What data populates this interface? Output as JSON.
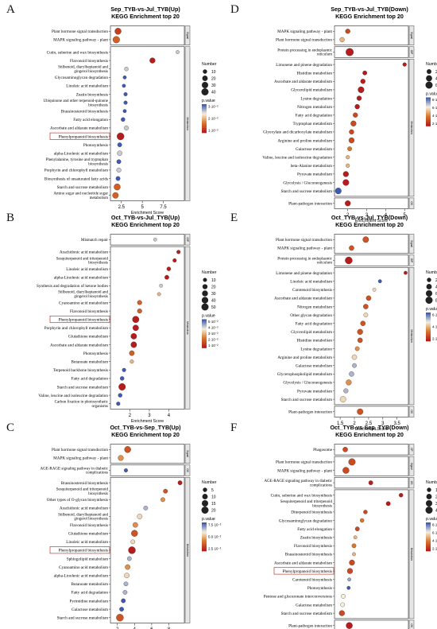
{
  "chart_data": [
    {
      "type": "scatter",
      "panel": "A",
      "title": "Sep_TYB-vs-Jul_TYB(Up)",
      "subtitle": "KEGG Enrichment top 20",
      "xlabel": "Enrichment Score",
      "xlim": [
        1.2,
        10
      ],
      "xticks": [
        2.5,
        5.0,
        7.5
      ],
      "groups": [
        {
          "label": "Signal",
          "n": 2
        },
        {
          "label": "Metabolism",
          "n": 18
        }
      ],
      "terms": [
        "Plant hormone signal transduction",
        "MAPK signaling pathway - plant",
        "Cutin, suberine and wax biosynthesis",
        "Flavonoid biosynthesis",
        "Stilbenoid, diarylheptanoid and gingerol biosynthesis",
        "Glycosaminoglycan degradation",
        "Linoleic acid metabolism",
        "Zeatin biosynthesis",
        "Ubiquinone and other terpenoid-quinone biosynthesis",
        "Brassinosteroid biosynthesis",
        "Fatty acid elongation",
        "Ascorbate and aldarate metabolism",
        "Phenylpropanoid biosynthesis",
        "Photosynthesis",
        "alpha-Linolenic acid metabolism",
        "Phenylalanine, tyrosine and tryptophan biosynthesis",
        "Porphyrin and chlorophyll metabolism",
        "Biosynthesis of unsaturated fatty acids",
        "Starch and sucrose metabolism",
        "Amino sugar and nucleotide sugar metabolism"
      ],
      "x": [
        2.1,
        1.9,
        9.2,
        6.2,
        3.1,
        2.9,
        2.8,
        3.0,
        3.0,
        2.9,
        2.7,
        3.1,
        2.4,
        2.3,
        2.3,
        2.2,
        2.2,
        2.1,
        2.0,
        1.8
      ],
      "size": [
        30,
        35,
        5,
        20,
        8,
        5,
        5,
        6,
        6,
        5,
        8,
        12,
        40,
        10,
        15,
        10,
        12,
        10,
        30,
        25
      ],
      "pvalue_log": [
        -5.5,
        -5,
        -3,
        -6,
        -3,
        -2,
        -2,
        -2,
        -2,
        -2,
        -2,
        -3,
        -6,
        -2,
        -3,
        -2,
        -3,
        -2,
        -5,
        -5
      ],
      "highlight": "Phenylpropanoid biosynthesis",
      "size_legend": {
        "title": "Number",
        "values": [
          10,
          20,
          30,
          40
        ]
      },
      "color_legend": {
        "title": "p.value",
        "labels": [
          "3·10⁻²",
          "2·10⁻²",
          "1·10⁻²"
        ],
        "colors": [
          "#3b5bb5",
          "#f5f0dc",
          "#d9772a",
          "#b71c1c"
        ]
      }
    },
    {
      "type": "scatter",
      "panel": "B",
      "title": "Oct_TYB-vs-Jul_TYB(Up)",
      "subtitle": "KEGG Enrichment top 20",
      "xlabel": "Enrichment Score",
      "xlim": [
        1.0,
        4.8
      ],
      "xticks": [
        2,
        3,
        4
      ],
      "groups": [
        {
          "label": "GIP",
          "n": 1
        },
        {
          "label": "Metabolism",
          "n": 19
        }
      ],
      "terms": [
        "Mismatch repair",
        "Arachidonic acid metabolism",
        "Sesquiterpenoid and triterpenoid biosynthesis",
        "Linoleic acid metabolism",
        "alpha-Linolenic acid metabolism",
        "Synthesis and degradation of ketone bodies",
        "Stilbenoid, diarylheptanoid and gingerol biosynthesis",
        "Cyanoamino acid metabolism",
        "Flavonoid biosynthesis",
        "Phenylpropanoid biosynthesis",
        "Porphyrin and chlorophyll metabolism",
        "Glutathione metabolism",
        "Ascorbate and aldarate metabolism",
        "Photosynthesis",
        "Butanoate metabolism",
        "Terpenoid backbone biosynthesis",
        "Fatty acid degradation",
        "Starch and sucrose metabolism",
        "Valine, leucine and isoleucine degradation",
        "Carbon fixation in photosynthetic organisms"
      ],
      "x": [
        3.3,
        4.5,
        4.3,
        4.0,
        3.9,
        3.6,
        3.5,
        2.5,
        2.5,
        2.3,
        2.3,
        2.2,
        2.2,
        2.1,
        2.1,
        1.7,
        1.6,
        1.6,
        1.5,
        1.4
      ],
      "size": [
        5,
        8,
        8,
        10,
        12,
        5,
        6,
        15,
        15,
        40,
        30,
        30,
        30,
        20,
        8,
        8,
        10,
        45,
        10,
        8
      ],
      "pvalue_log": [
        -2,
        -5,
        -5,
        -5,
        -5,
        -2,
        -3,
        -4,
        -4,
        -5,
        -5,
        -5,
        -5,
        -4,
        -3,
        -1,
        -1,
        -5,
        -1,
        -1
      ],
      "highlight": "Phenylpropanoid biosynthesis",
      "size_legend": {
        "title": "Number",
        "values": [
          10,
          20,
          30,
          40,
          50
        ]
      },
      "color_legend": {
        "title": "p.value",
        "labels": [
          "5·10⁻²",
          "4·10⁻²",
          "3·10⁻²",
          "2·10⁻²",
          "1·10⁻²"
        ],
        "colors": [
          "#3b5bb5",
          "#f5f0dc",
          "#d9772a",
          "#b71c1c"
        ]
      }
    },
    {
      "type": "scatter",
      "panel": "C",
      "title": "Oct_TYB-vs-Sep_TYB(Up)",
      "subtitle": "KEGG Enrichment top 20",
      "xlabel": "Enrichment Score",
      "xlim": [
        1.2,
        9.8
      ],
      "xticks": [
        2,
        4,
        6,
        8
      ],
      "groups": [
        {
          "label": "Signal",
          "n": 2
        },
        {
          "label": "OS",
          "n": 1
        },
        {
          "label": "Metabolism",
          "n": 17
        }
      ],
      "terms": [
        "Plant hormone signal transduction",
        "MAPK signaling pathway - plant",
        "AGE-RAGE signaling pathway in diabetic complications",
        "Brassinosteroid biosynthesis",
        "Sesquiterpenoid and triterpenoid biosynthesis",
        "Other types of O-glycan biosynthesis",
        "Arachidonic acid metabolism",
        "Stilbenoid, diarylheptanoid and gingerol biosynthesis",
        "Flavonoid biosynthesis",
        "Glutathione metabolism",
        "Linoleic acid metabolism",
        "Phenylpropanoid biosynthesis",
        "Sphingolipid metabolism",
        "Cyanoamino acid metabolism",
        "alpha-Linolenic acid metabolism",
        "Butanoate metabolism",
        "Fatty acid degradation",
        "Pyrimidine metabolism",
        "Galactose metabolism",
        "Starch and sucrose metabolism"
      ],
      "x": [
        3.2,
        2.4,
        3.0,
        9.3,
        7.6,
        7.3,
        5.3,
        4.6,
        4.1,
        4.0,
        3.8,
        3.7,
        3.4,
        3.2,
        3.1,
        3.0,
        2.9,
        2.7,
        2.5,
        2.3
      ],
      "size": [
        15,
        10,
        3,
        5,
        5,
        5,
        5,
        8,
        8,
        15,
        5,
        20,
        5,
        8,
        8,
        5,
        5,
        5,
        5,
        20
      ],
      "pvalue_log": [
        -5,
        -4,
        -1,
        -6,
        -5,
        -4,
        -2,
        -3,
        -4,
        -5,
        -3,
        -6,
        -2,
        -4,
        -3,
        -2,
        -2,
        -1,
        -1,
        -5
      ],
      "highlight": "Phenylpropanoid biosynthesis",
      "size_legend": {
        "title": "Number",
        "values": [
          5,
          10,
          15,
          20
        ]
      },
      "color_legend": {
        "title": "p.value",
        "labels": [
          "7.5·10⁻²",
          "5.0·10⁻²",
          "2.5·10⁻²"
        ],
        "colors": [
          "#3b5bb5",
          "#f5f0dc",
          "#d9772a",
          "#b71c1c"
        ]
      }
    },
    {
      "type": "scatter",
      "panel": "D",
      "title": "Sep_TYB-vs-Jul_TYB(Down)",
      "subtitle": "KEGG Enrichment top 20",
      "xlabel": "Enrichment Score",
      "xlim": [
        1.3,
        5.2
      ],
      "xticks": [
        2,
        3,
        4,
        5
      ],
      "groups": [
        {
          "label": "Signal",
          "n": 2
        },
        {
          "label": "GIP",
          "n": 1
        },
        {
          "label": "Metabolism",
          "n": 16
        },
        {
          "label": "OS",
          "n": 1
        }
      ],
      "terms": [
        "MAPK signaling pathway - plant",
        "Plant hormone signal transduction",
        "Protein processing in endoplasmic reticulum",
        "Limonene and pinene degradation",
        "Histidine metabolism",
        "Ascorbate and aldarate metabolism",
        "Glycerolipid metabolism",
        "Lysine degradation",
        "Nitrogen metabolism",
        "Fatty acid degradation",
        "Tryptophan metabolism",
        "Glyoxylate and dicarboxylate metabolism",
        "Arginine and proline metabolism",
        "Galactose metabolism",
        "Valine, leucine and isoleucine degradation",
        "beta-Alanine metabolism",
        "Pyruvate metabolism",
        "Glycolysis / Gluconeogenesis",
        "Starch and sucrose metabolism",
        "Plant-pathogen interaction"
      ],
      "x": [
        2.0,
        1.7,
        2.1,
        5.0,
        2.9,
        2.8,
        2.7,
        2.6,
        2.5,
        2.4,
        2.3,
        2.2,
        2.2,
        2.1,
        2.0,
        2.0,
        1.9,
        1.9,
        1.5,
        2.0
      ],
      "size": [
        20,
        20,
        70,
        10,
        15,
        20,
        40,
        20,
        20,
        20,
        30,
        20,
        30,
        15,
        10,
        10,
        30,
        40,
        40,
        30
      ],
      "pvalue_log": [
        -6,
        -4,
        -7,
        -7,
        -7,
        -7,
        -7,
        -7,
        -7,
        -6,
        -6,
        -6,
        -6,
        -5,
        -4,
        -4,
        -7,
        -7,
        -1,
        -7
      ],
      "size_legend": {
        "title": "Number",
        "values": [
          20,
          40,
          60
        ]
      },
      "color_legend": {
        "title": "p.value",
        "labels": [
          "8·10⁻²",
          "6·10⁻²",
          "4·10⁻²",
          "2·10⁻²"
        ],
        "colors": [
          "#3b5bb5",
          "#f5f0dc",
          "#d9772a",
          "#b71c1c"
        ]
      }
    },
    {
      "type": "scatter",
      "panel": "E",
      "title": "Oct_TYB-vs-Jul_TYB(Down)",
      "subtitle": "KEGG Enrichment top 20",
      "xlabel": "Enrichment Score",
      "xlim": [
        1.3,
        3.9
      ],
      "xticks": [
        1.5,
        2.0,
        2.5,
        3.0,
        3.5
      ],
      "groups": [
        {
          "label": "Signal",
          "n": 2
        },
        {
          "label": "GIP",
          "n": 1
        },
        {
          "label": "Metabolism",
          "n": 16
        },
        {
          "label": "OS",
          "n": 1
        }
      ],
      "terms": [
        "Plant hormone signal transduction",
        "MAPK signaling pathway - plant",
        "Protein processing in endoplasmic reticulum",
        "Limonene and pinene degradation",
        "Linoleic acid metabolism",
        "Carotenoid biosynthesis",
        "Ascorbate and aldarate metabolism",
        "Nitrogen metabolism",
        "Other glycan degradation",
        "Fatty acid degradation",
        "Glycerolipid metabolism",
        "Histidine metabolism",
        "Lysine degradation",
        "Arginine and proline metabolism",
        "Galactose metabolism",
        "Glycerophospholipid metabolism",
        "Glycolysis / Gluconeogenesis",
        "Pyruvate metabolism",
        "Starch and sucrose metabolism",
        "Plant-pathogen interaction"
      ],
      "x": [
        2.4,
        1.9,
        1.8,
        3.8,
        2.9,
        2.7,
        2.5,
        2.4,
        2.4,
        2.3,
        2.2,
        2.2,
        2.1,
        2.0,
        2.0,
        1.9,
        1.8,
        1.7,
        1.6,
        2.2
      ],
      "size": [
        50,
        30,
        80,
        10,
        10,
        10,
        30,
        30,
        20,
        30,
        40,
        30,
        20,
        30,
        20,
        30,
        40,
        25,
        50,
        50
      ],
      "pvalue_log": [
        -6,
        -6,
        -7,
        -7,
        -2,
        -4,
        -6,
        -6,
        -4,
        -6,
        -6,
        -6,
        -5,
        -4,
        -3,
        -3,
        -5,
        -3,
        -4,
        -6
      ],
      "size_legend": {
        "title": "Number",
        "values": [
          20,
          40,
          60,
          80
        ]
      },
      "color_legend": {
        "title": "p.value",
        "labels": [
          "6·10⁻²",
          "4·10⁻²",
          "2·10⁻²"
        ],
        "colors": [
          "#3b5bb5",
          "#f5f0dc",
          "#d9772a",
          "#b71c1c"
        ]
      }
    },
    {
      "type": "scatter",
      "panel": "F",
      "title": "Oct_TYB-vs-Sep_TYB(Down)",
      "subtitle": "KEGG Enrichment top 20",
      "xlabel": "Enrichment Score",
      "xlim": [
        1.0,
        12.0
      ],
      "xticks": [
        3,
        6,
        9
      ],
      "groups": [
        {
          "label": "CP",
          "n": 1
        },
        {
          "label": "Signal",
          "n": 2
        },
        {
          "label": "OS",
          "n": 1
        },
        {
          "label": "Metabolism",
          "n": 15
        },
        {
          "label": "OS",
          "n": 1
        }
      ],
      "terms": [
        "Phagosome",
        "Plant hormone signal transduction",
        "MAPK signaling pathway - plant",
        "AGE-RAGE signaling pathway in diabetic complications",
        "Cutin, suberine and wax biosynthesis",
        "Sesquiterpenoid and triterpenoid biosynthesis",
        "Diterpenoid biosynthesis",
        "Glycosaminoglycan degradation",
        "Fatty acid elongation",
        "Zeatin biosynthesis",
        "Flavonoid biosynthesis",
        "Brassinosteroid biosynthesis",
        "Ascorbate and aldarate metabolism",
        "Phenylpropanoid biosynthesis",
        "Carotenoid biosynthesis",
        "Photosynthesis",
        "Pentose and glucuronate interconversions",
        "Galactose metabolism",
        "Starch and sucrose metabolism",
        "Plant-pathogen interaction"
      ],
      "x": [
        2.6,
        3.6,
        2.7,
        6.4,
        10.9,
        9.0,
        5.6,
        5.1,
        4.4,
        4.1,
        3.9,
        3.9,
        3.6,
        3.3,
        3.2,
        3.1,
        2.3,
        2.2,
        2.1,
        3.2
      ],
      "size": [
        15,
        35,
        30,
        10,
        8,
        10,
        8,
        8,
        10,
        5,
        10,
        5,
        20,
        20,
        5,
        5,
        10,
        10,
        20,
        30
      ],
      "pvalue_log": [
        -6,
        -6,
        -6,
        -7,
        -7,
        -7,
        -6,
        -5,
        -6,
        -4,
        -5,
        -4,
        -6,
        -6,
        -2,
        -1,
        -3,
        -3,
        -6,
        -7
      ],
      "highlight": "Phenylpropanoid biosynthesis",
      "size_legend": {
        "title": "Number",
        "values": [
          10,
          20,
          30,
          40
        ]
      },
      "color_legend": {
        "title": "p.value",
        "labels": [
          "8·10⁻²",
          "6·10⁻²",
          "4·10⁻²",
          "2·10⁻²"
        ],
        "colors": [
          "#3b5bb5",
          "#f5f0dc",
          "#d9772a",
          "#b71c1c"
        ]
      }
    }
  ]
}
